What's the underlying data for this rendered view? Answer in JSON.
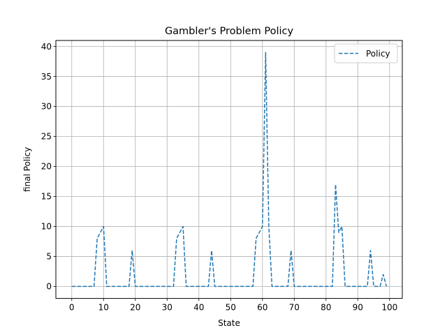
{
  "chart_data": {
    "type": "line",
    "title": "Gambler's Problem Policy",
    "xlabel": "State",
    "ylabel": "final Policy",
    "xlim": [
      -5,
      104
    ],
    "ylim": [
      -2,
      41
    ],
    "xticks": [
      0,
      10,
      20,
      30,
      40,
      50,
      60,
      70,
      80,
      90,
      100
    ],
    "yticks": [
      0,
      5,
      10,
      15,
      20,
      25,
      30,
      35,
      40
    ],
    "grid": true,
    "legend_position": "top-right",
    "series": [
      {
        "name": "Policy",
        "color": "#1f77b4",
        "line_style": "dashed",
        "x": [
          0,
          1,
          2,
          3,
          4,
          5,
          6,
          7,
          8,
          9,
          10,
          11,
          12,
          13,
          14,
          15,
          16,
          17,
          18,
          19,
          20,
          21,
          22,
          23,
          24,
          25,
          26,
          27,
          28,
          29,
          30,
          31,
          32,
          33,
          34,
          35,
          36,
          37,
          38,
          39,
          40,
          41,
          42,
          43,
          44,
          45,
          46,
          47,
          48,
          49,
          50,
          51,
          52,
          53,
          54,
          55,
          56,
          57,
          58,
          59,
          60,
          61,
          62,
          63,
          64,
          65,
          66,
          67,
          68,
          69,
          70,
          71,
          72,
          73,
          74,
          75,
          76,
          77,
          78,
          79,
          80,
          81,
          82,
          83,
          84,
          85,
          86,
          87,
          88,
          89,
          90,
          91,
          92,
          93,
          94,
          95,
          96,
          97,
          98,
          99
        ],
        "y": [
          0,
          0,
          0,
          0,
          0,
          0,
          0,
          0,
          8,
          9,
          10,
          0,
          0,
          0,
          0,
          0,
          0,
          0,
          0,
          6,
          0,
          0,
          0,
          0,
          0,
          0,
          0,
          0,
          0,
          0,
          0,
          0,
          0,
          8,
          9,
          10,
          0,
          0,
          0,
          0,
          0,
          0,
          0,
          0,
          6,
          0,
          0,
          0,
          0,
          0,
          0,
          0,
          0,
          0,
          0,
          0,
          0,
          0,
          8,
          9,
          10,
          39,
          10,
          0,
          0,
          0,
          0,
          0,
          0,
          6,
          0,
          0,
          0,
          0,
          0,
          0,
          0,
          0,
          0,
          0,
          0,
          0,
          0,
          17,
          9,
          10,
          0,
          0,
          0,
          0,
          0,
          0,
          0,
          0,
          6,
          0,
          0,
          0,
          2,
          0
        ]
      }
    ]
  }
}
